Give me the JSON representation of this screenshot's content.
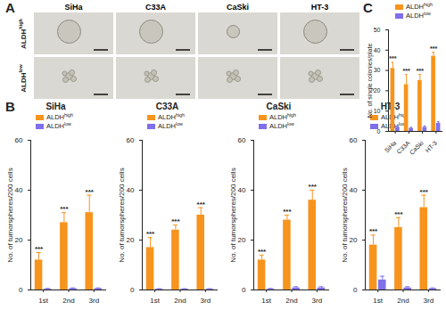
{
  "panel_a": {
    "label": "A",
    "columns": [
      "SiHa",
      "C33A",
      "CaSki",
      "HT-3"
    ],
    "rows": [
      "ALDHhigh",
      "ALDHlow"
    ]
  },
  "chart_data": [
    {
      "type": "bar",
      "panel_label": "B",
      "title": "SiHa",
      "categories": [
        "1st",
        "2nd",
        "3rd"
      ],
      "ylabel": "No. of tumorspheres/200 cells",
      "ylim": [
        0,
        60
      ],
      "yticks": [
        0,
        20,
        40,
        60
      ],
      "grid": false,
      "legend": "top-left",
      "series": [
        {
          "name": "ALDHhigh",
          "color": "#f7941d",
          "values": [
            12,
            27,
            31
          ],
          "errors": [
            3,
            4,
            7
          ],
          "annotations": [
            "***",
            "***",
            "***"
          ]
        },
        {
          "name": "ALDHlow",
          "color": "#7f6fea",
          "values": [
            0.3,
            0.5,
            0.5
          ],
          "errors": [
            0.3,
            0.3,
            0.3
          ]
        }
      ]
    },
    {
      "type": "bar",
      "title": "C33A",
      "categories": [
        "1st",
        "2nd",
        "3rd"
      ],
      "ylabel": "No. of tumorspheres/200 cells",
      "ylim": [
        0,
        60
      ],
      "yticks": [
        0,
        20,
        40,
        60
      ],
      "grid": false,
      "legend": "top-left",
      "series": [
        {
          "name": "ALDHhigh",
          "color": "#f7941d",
          "values": [
            17,
            24,
            30
          ],
          "errors": [
            4,
            2,
            3
          ],
          "annotations": [
            "***",
            "***",
            "***"
          ]
        },
        {
          "name": "ALDHlow",
          "color": "#7f6fea",
          "values": [
            0.3,
            0.3,
            0.3
          ],
          "errors": [
            0.2,
            0.2,
            0.2
          ]
        }
      ]
    },
    {
      "type": "bar",
      "title": "CaSki",
      "categories": [
        "1st",
        "2nd",
        "3rd"
      ],
      "ylabel": "No. of tumorspheres/200 cells",
      "ylim": [
        0,
        60
      ],
      "yticks": [
        0,
        20,
        40,
        60
      ],
      "grid": false,
      "legend": "top-left",
      "series": [
        {
          "name": "ALDHhigh",
          "color": "#f7941d",
          "values": [
            12,
            28,
            36
          ],
          "errors": [
            2,
            2,
            4
          ],
          "annotations": [
            "***",
            "***",
            "***"
          ]
        },
        {
          "name": "ALDHlow",
          "color": "#7f6fea",
          "values": [
            0.3,
            0.8,
            0.8
          ],
          "errors": [
            0.3,
            0.5,
            0.5
          ]
        }
      ]
    },
    {
      "type": "bar",
      "title": "HT-3",
      "categories": [
        "1st",
        "2nd",
        "3rd"
      ],
      "ylabel": "No. of tumorspheres/200 cells",
      "ylim": [
        0,
        60
      ],
      "yticks": [
        0,
        20,
        40,
        60
      ],
      "grid": false,
      "legend": "top-left",
      "series": [
        {
          "name": "ALDHhigh",
          "color": "#f7941d",
          "values": [
            18,
            25,
            33
          ],
          "errors": [
            4,
            4,
            5
          ],
          "annotations": [
            "***",
            "***",
            "***"
          ]
        },
        {
          "name": "ALDHlow",
          "color": "#7f6fea",
          "values": [
            4,
            0.8,
            0.5
          ],
          "errors": [
            1.5,
            0.5,
            0.3
          ]
        }
      ]
    },
    {
      "type": "bar",
      "panel_label": "C",
      "categories": [
        "SiHa",
        "C33A",
        "CaSki",
        "HT-3"
      ],
      "ylabel": "No. of single colonies/plate",
      "ylim": [
        0,
        50
      ],
      "yticks": [
        0,
        10,
        20,
        30,
        40,
        50
      ],
      "grid": false,
      "legend": "top",
      "series": [
        {
          "name": "ALDHhigh",
          "color": "#f7941d",
          "values": [
            31,
            23,
            25,
            37
          ],
          "errors": [
            3,
            5,
            3,
            2
          ],
          "annotations": [
            "***",
            "***",
            "***",
            "***"
          ]
        },
        {
          "name": "ALDHlow",
          "color": "#7f6fea",
          "values": [
            2,
            1.5,
            2,
            4
          ],
          "errors": [
            0.7,
            0.5,
            0.7,
            0.8
          ]
        }
      ]
    }
  ]
}
